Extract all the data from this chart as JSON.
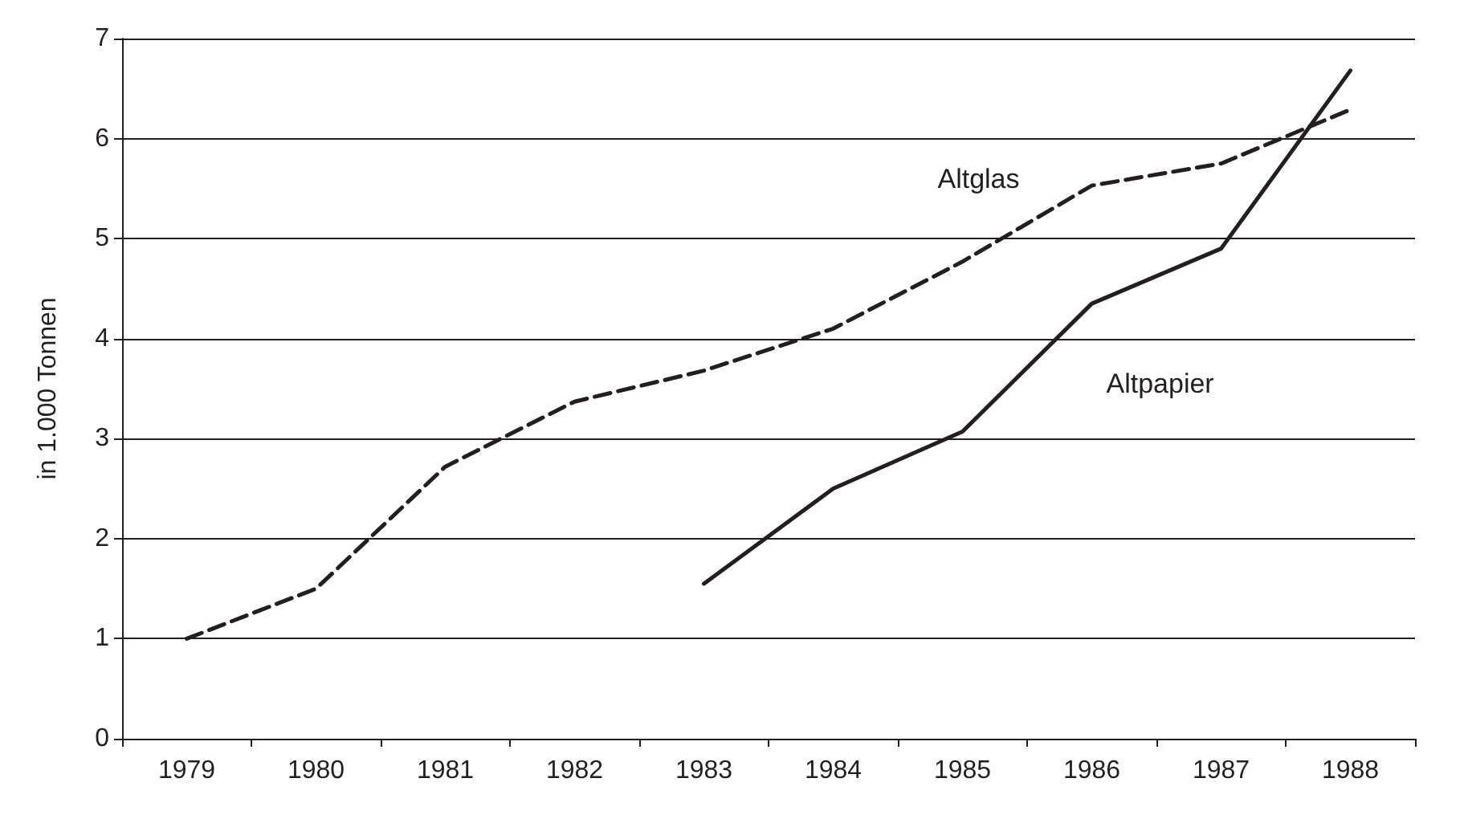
{
  "chart_data": {
    "type": "line",
    "ylabel": "in 1.000 Tonnen",
    "categories": [
      "1979",
      "1980",
      "1981",
      "1982",
      "1983",
      "1984",
      "1985",
      "1986",
      "1987",
      "1988"
    ],
    "series": [
      {
        "name": "Altglas",
        "color": "#231f20",
        "line_style": "dashed",
        "values": [
          1.0,
          1.5,
          2.72,
          3.37,
          3.68,
          4.1,
          4.77,
          5.53,
          5.75,
          6.29
        ]
      },
      {
        "name": "Altpapier",
        "color": "#231f20",
        "line_style": "solid",
        "values": [
          null,
          null,
          null,
          null,
          1.55,
          2.5,
          3.07,
          4.35,
          4.9,
          6.68
        ]
      }
    ],
    "ylim": [
      0,
      7
    ],
    "yticks": [
      0,
      1,
      2,
      3,
      4,
      5,
      6,
      7
    ],
    "grid": "y",
    "legend": false,
    "marker": "none"
  }
}
